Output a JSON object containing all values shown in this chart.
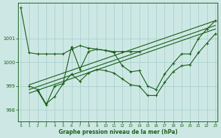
{
  "xlabel": "Graphe pression niveau de la mer (hPa)",
  "bg_color": "#cde8e4",
  "grid_color": "#a8d0cc",
  "line_color": "#1a5e1a",
  "ylim": [
    997.5,
    1002.5
  ],
  "yticks": [
    998,
    999,
    1000,
    1001
  ],
  "xticks": [
    0,
    1,
    2,
    3,
    4,
    5,
    6,
    7,
    8,
    9,
    10,
    11,
    12,
    13,
    14,
    15,
    16,
    17,
    18,
    19,
    20,
    21,
    22,
    23
  ],
  "s1_x": [
    0,
    1,
    2,
    3,
    4,
    5,
    6,
    7,
    8,
    9,
    10,
    11,
    12,
    13,
    14
  ],
  "s1_y": [
    1002.3,
    1000.4,
    1000.35,
    1000.35,
    1000.35,
    1000.35,
    1000.55,
    1000.7,
    1000.6,
    1000.55,
    1000.5,
    1000.45,
    1000.45,
    1000.45,
    1000.45
  ],
  "s2_x": [
    2,
    3,
    4,
    5,
    6,
    7,
    8,
    9,
    10,
    11,
    12,
    13,
    14,
    15,
    16,
    17,
    18,
    19,
    20,
    21,
    22,
    23
  ],
  "s2_y": [
    998.8,
    998.2,
    999.0,
    999.1,
    1000.65,
    999.7,
    1000.45,
    1000.55,
    1000.5,
    1000.4,
    999.85,
    999.6,
    999.65,
    999.0,
    998.85,
    999.5,
    999.95,
    1000.35,
    1000.35,
    1001.0,
    1001.4,
    1001.75
  ],
  "s3_x": [
    1,
    2,
    3,
    4,
    5,
    6,
    7,
    8,
    9,
    10,
    11,
    12,
    13,
    14,
    15,
    16,
    17,
    18,
    19,
    20,
    21,
    22,
    23
  ],
  "s3_y": [
    999.0,
    998.85,
    998.25,
    998.55,
    999.1,
    999.5,
    999.2,
    999.55,
    999.7,
    999.65,
    999.55,
    999.3,
    999.05,
    999.0,
    998.6,
    998.6,
    999.15,
    999.6,
    999.85,
    999.9,
    1000.4,
    1000.8,
    1001.2
  ],
  "trend1_x": [
    1,
    23
  ],
  "trend1_y": [
    999.05,
    1001.75
  ],
  "trend2_x": [
    1,
    23
  ],
  "trend2_y": [
    998.85,
    1001.55
  ],
  "trend3_x": [
    1,
    23
  ],
  "trend3_y": [
    998.7,
    1001.4
  ]
}
